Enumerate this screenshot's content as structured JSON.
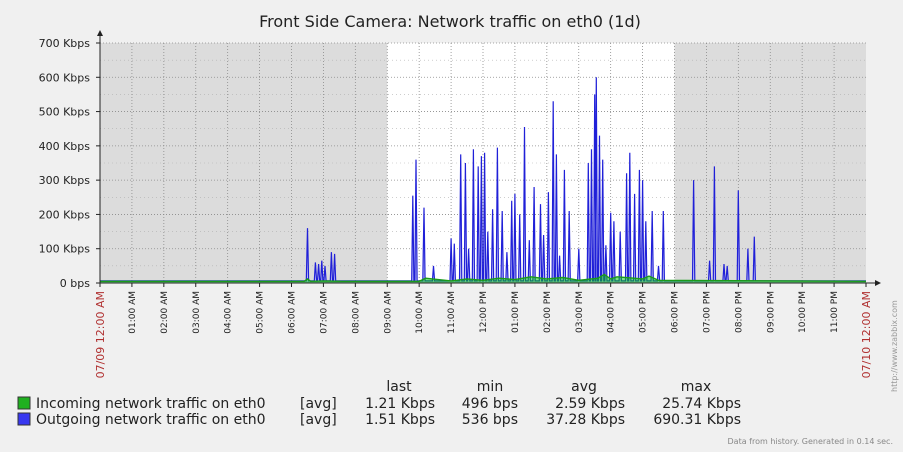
{
  "chart_data": {
    "type": "area",
    "title": "Front Side Camera: Network traffic on eth0 (1d)",
    "y_unit": "Kbps",
    "ylim": [
      0,
      700
    ],
    "y_ticks": [
      "0 bps",
      "100 Kbps",
      "200 Kbps",
      "300 Kbps",
      "400 Kbps",
      "500 Kbps",
      "600 Kbps",
      "700 Kbps"
    ],
    "x_start_label": "07/09 12:00 AM",
    "x_end_label": "07/10 12:00 AM",
    "x_ticks": [
      "01:00 AM",
      "02:00 AM",
      "03:00 AM",
      "04:00 AM",
      "05:00 AM",
      "06:00 AM",
      "07:00 AM",
      "08:00 AM",
      "09:00 AM",
      "10:00 AM",
      "11:00 AM",
      "12:00 PM",
      "01:00 PM",
      "02:00 PM",
      "03:00 PM",
      "04:00 PM",
      "05:00 PM",
      "06:00 PM",
      "07:00 PM",
      "08:00 PM",
      "09:00 PM",
      "10:00 PM",
      "11:00 PM"
    ],
    "working_hours": [
      9,
      18
    ],
    "grid": true,
    "legend_position": "bottom-left",
    "series": [
      {
        "name": "Incoming network traffic on eth0",
        "color": "#1a9a1a",
        "fill": "#00cc00",
        "x_hours": [
          0,
          6.4,
          6.5,
          6.6,
          7.0,
          7.6,
          10.0,
          10.2,
          11.0,
          11.5,
          12.0,
          12.5,
          13.0,
          13.5,
          14.0,
          14.5,
          15.0,
          15.6,
          15.8,
          16.0,
          16.2,
          17.0,
          17.2,
          17.5,
          24
        ],
        "values": [
          5,
          5,
          12,
          5,
          6,
          5,
          5,
          14,
          6,
          12,
          8,
          14,
          10,
          18,
          12,
          16,
          8,
          14,
          25,
          12,
          18,
          12,
          20,
          8,
          5
        ]
      },
      {
        "name": "Outgoing network traffic on eth0",
        "color": "#2020d8",
        "fill": "#c6c6f4",
        "spikes": [
          [
            6.5,
            160
          ],
          [
            6.75,
            60
          ],
          [
            6.85,
            55
          ],
          [
            6.95,
            65
          ],
          [
            7.05,
            50
          ],
          [
            7.25,
            90
          ],
          [
            7.35,
            85
          ],
          [
            9.8,
            255
          ],
          [
            9.9,
            360
          ],
          [
            10.15,
            220
          ],
          [
            10.45,
            50
          ],
          [
            11.0,
            130
          ],
          [
            11.1,
            115
          ],
          [
            11.3,
            375
          ],
          [
            11.45,
            350
          ],
          [
            11.55,
            100
          ],
          [
            11.7,
            390
          ],
          [
            11.85,
            340
          ],
          [
            11.95,
            370
          ],
          [
            12.05,
            380
          ],
          [
            12.15,
            150
          ],
          [
            12.3,
            215
          ],
          [
            12.45,
            395
          ],
          [
            12.6,
            210
          ],
          [
            12.75,
            90
          ],
          [
            12.9,
            240
          ],
          [
            13.0,
            260
          ],
          [
            13.15,
            200
          ],
          [
            13.3,
            455
          ],
          [
            13.45,
            125
          ],
          [
            13.6,
            280
          ],
          [
            13.8,
            230
          ],
          [
            13.9,
            140
          ],
          [
            14.05,
            265
          ],
          [
            14.2,
            530
          ],
          [
            14.3,
            375
          ],
          [
            14.4,
            80
          ],
          [
            14.55,
            330
          ],
          [
            14.7,
            210
          ],
          [
            15.0,
            100
          ],
          [
            15.3,
            350
          ],
          [
            15.4,
            390
          ],
          [
            15.5,
            550
          ],
          [
            15.55,
            600
          ],
          [
            15.65,
            430
          ],
          [
            15.75,
            360
          ],
          [
            15.85,
            110
          ],
          [
            16.0,
            205
          ],
          [
            16.1,
            180
          ],
          [
            16.3,
            150
          ],
          [
            16.5,
            320
          ],
          [
            16.6,
            380
          ],
          [
            16.75,
            260
          ],
          [
            16.9,
            330
          ],
          [
            17.0,
            300
          ],
          [
            17.1,
            180
          ],
          [
            17.3,
            210
          ],
          [
            17.5,
            50
          ],
          [
            17.65,
            210
          ],
          [
            18.6,
            300
          ],
          [
            19.1,
            65
          ],
          [
            19.25,
            340
          ],
          [
            19.55,
            55
          ],
          [
            19.65,
            50
          ],
          [
            20.0,
            270
          ],
          [
            20.3,
            100
          ],
          [
            20.5,
            135
          ]
        ]
      }
    ]
  },
  "legend": {
    "headers": [
      "last",
      "min",
      "avg",
      "max"
    ],
    "rows": [
      {
        "name": "Incoming network traffic on eth0",
        "color": "#20b020",
        "func": "[avg]",
        "last": "1.21 Kbps",
        "min": "496 bps",
        "avg": "2.59 Kbps",
        "max": "25.74 Kbps"
      },
      {
        "name": "Outgoing network traffic on eth0",
        "color": "#3838f0",
        "func": "[avg]",
        "last": "1.51 Kbps",
        "min": "536 bps",
        "avg": "37.28 Kbps",
        "max": "690.31 Kbps"
      }
    ]
  },
  "side_text": "http://www.zabbix.com",
  "footer": "Data from history. Generated in 0.14 sec."
}
